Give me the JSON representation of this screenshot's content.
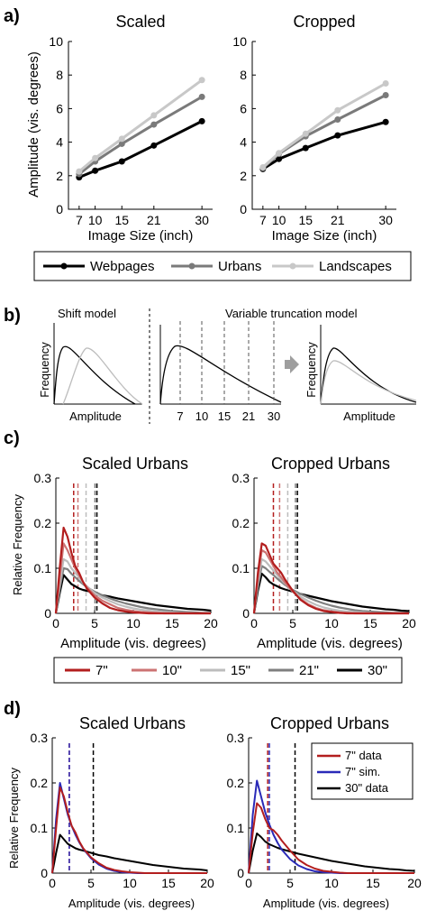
{
  "colors": {
    "webpages": "#000000",
    "urbans": "#7a7a7a",
    "landscapes": "#c8c8c8",
    "in7": "#b31e1e",
    "in10": "#cc7373",
    "in15": "#bdbdbd",
    "in21": "#7f7f7f",
    "in30": "#000000",
    "sim7": "#2a2ab8"
  },
  "panel_a": {
    "label": "a)",
    "ylabel": "Amplitude (vis. degrees)",
    "xlabel": "Image Size (inch)",
    "legend": [
      "Webpages",
      "Urbans",
      "Landscapes"
    ],
    "left_title": "Scaled",
    "right_title": "Cropped"
  },
  "panel_b": {
    "label": "b)",
    "shift_title": "Shift model",
    "trunc_title": "Variable truncation model",
    "ylabel": "Frequency",
    "xlabel": "Amplitude",
    "ticks": [
      "7",
      "10",
      "15",
      "21",
      "30"
    ]
  },
  "panel_c": {
    "label": "c)",
    "ylabel": "Relative Frequency",
    "xlabel": "Amplitude (vis. degrees)",
    "left_title": "Scaled Urbans",
    "right_title": "Cropped Urbans",
    "legend": [
      "7\"",
      "10\"",
      "15\"",
      "21\"",
      "30\""
    ]
  },
  "panel_d": {
    "label": "d)",
    "ylabel": "Relative Frequency",
    "xlabel": "Amplitude (vis. degrees)",
    "left_title": "Scaled Urbans",
    "right_title": "Cropped Urbans",
    "legend": [
      "7\" data",
      "7\" sim.",
      "30\" data"
    ]
  },
  "chart_data": [
    {
      "type": "line",
      "title": "Scaled",
      "xlabel": "Image Size (inch)",
      "ylabel": "Amplitude (vis. degrees)",
      "x": [
        7,
        10,
        15,
        21,
        30
      ],
      "xlim": [
        5,
        32
      ],
      "ylim": [
        0,
        10
      ],
      "yticks": [
        0,
        2,
        4,
        6,
        8,
        10
      ],
      "series": [
        {
          "name": "Webpages",
          "values": [
            1.9,
            2.3,
            2.85,
            3.8,
            5.25
          ]
        },
        {
          "name": "Urbans",
          "values": [
            2.1,
            2.85,
            3.9,
            5.05,
            6.7
          ]
        },
        {
          "name": "Landscapes",
          "values": [
            2.25,
            3.05,
            4.2,
            5.6,
            7.7
          ]
        }
      ]
    },
    {
      "type": "line",
      "title": "Cropped",
      "xlabel": "Image Size (inch)",
      "ylabel": "Amplitude (vis. degrees)",
      "x": [
        7,
        10,
        15,
        21,
        30
      ],
      "xlim": [
        5,
        32
      ],
      "ylim": [
        0,
        10
      ],
      "yticks": [
        0,
        2,
        4,
        6,
        8,
        10
      ],
      "series": [
        {
          "name": "Webpages",
          "values": [
            2.4,
            3.0,
            3.65,
            4.4,
            5.2
          ]
        },
        {
          "name": "Urbans",
          "values": [
            2.45,
            3.3,
            4.35,
            5.35,
            6.8
          ]
        },
        {
          "name": "Landscapes",
          "values": [
            2.5,
            3.35,
            4.5,
            5.9,
            7.5
          ]
        }
      ]
    },
    {
      "type": "line",
      "title": "Scaled Urbans",
      "xlabel": "Amplitude (vis. degrees)",
      "ylabel": "Relative Frequency",
      "xlim": [
        0,
        20
      ],
      "ylim": [
        0,
        0.3
      ],
      "xticks": [
        0,
        5,
        10,
        15,
        20
      ],
      "yticks": [
        0,
        0.1,
        0.2,
        0.3
      ],
      "x": [
        0,
        0.5,
        1,
        1.5,
        2,
        2.5,
        3,
        3.5,
        4,
        5,
        6,
        7,
        8,
        9,
        10,
        11,
        12,
        13,
        14,
        15,
        16,
        17,
        18,
        19,
        20
      ],
      "series": [
        {
          "name": "7\"",
          "values": [
            0,
            0.1,
            0.19,
            0.17,
            0.135,
            0.105,
            0.09,
            0.07,
            0.055,
            0.035,
            0.022,
            0.012,
            0.007,
            0.004,
            0.002,
            0.001,
            0,
            0,
            0,
            0,
            0,
            0,
            0,
            0,
            0
          ],
          "vline": 2.3
        },
        {
          "name": "10\"",
          "values": [
            0,
            0.08,
            0.155,
            0.14,
            0.12,
            0.1,
            0.085,
            0.07,
            0.058,
            0.04,
            0.028,
            0.02,
            0.012,
            0.008,
            0.005,
            0.003,
            0.002,
            0.001,
            0,
            0,
            0,
            0,
            0,
            0,
            0
          ],
          "vline": 2.85
        },
        {
          "name": "15\"",
          "values": [
            0,
            0.065,
            0.12,
            0.115,
            0.1,
            0.09,
            0.08,
            0.068,
            0.06,
            0.045,
            0.035,
            0.027,
            0.02,
            0.015,
            0.011,
            0.008,
            0.006,
            0.004,
            0.003,
            0.002,
            0.001,
            0.001,
            0,
            0,
            0
          ],
          "vline": 3.9
        },
        {
          "name": "21\"",
          "values": [
            0,
            0.055,
            0.1,
            0.098,
            0.088,
            0.08,
            0.072,
            0.065,
            0.058,
            0.048,
            0.04,
            0.033,
            0.027,
            0.022,
            0.018,
            0.014,
            0.011,
            0.009,
            0.007,
            0.005,
            0.004,
            0.003,
            0.002,
            0.001,
            0.001
          ],
          "vline": 5.05
        },
        {
          "name": "30\"",
          "values": [
            0,
            0.045,
            0.085,
            0.075,
            0.065,
            0.06,
            0.055,
            0.052,
            0.05,
            0.045,
            0.04,
            0.037,
            0.033,
            0.03,
            0.027,
            0.024,
            0.021,
            0.018,
            0.016,
            0.014,
            0.012,
            0.01,
            0.009,
            0.008,
            0.006
          ],
          "vline": 5.3
        }
      ]
    },
    {
      "type": "line",
      "title": "Cropped Urbans",
      "xlabel": "Amplitude (vis. degrees)",
      "ylabel": "Relative Frequency",
      "xlim": [
        0,
        20
      ],
      "ylim": [
        0,
        0.3
      ],
      "xticks": [
        0,
        5,
        10,
        15,
        20
      ],
      "yticks": [
        0,
        0.1,
        0.2,
        0.3
      ],
      "x": [
        0,
        0.5,
        1,
        1.5,
        2,
        2.5,
        3,
        3.5,
        4,
        5,
        6,
        7,
        8,
        9,
        10,
        11,
        12,
        13,
        14,
        15,
        16,
        17,
        18,
        19,
        20
      ],
      "series": [
        {
          "name": "7\"",
          "values": [
            0,
            0.09,
            0.155,
            0.15,
            0.13,
            0.11,
            0.1,
            0.09,
            0.075,
            0.05,
            0.03,
            0.018,
            0.01,
            0.005,
            0.003,
            0.001,
            0,
            0,
            0,
            0,
            0,
            0,
            0,
            0,
            0
          ],
          "vline": 2.5
        },
        {
          "name": "10\"",
          "values": [
            0,
            0.08,
            0.14,
            0.135,
            0.12,
            0.105,
            0.09,
            0.08,
            0.068,
            0.048,
            0.032,
            0.02,
            0.012,
            0.007,
            0.004,
            0.002,
            0.001,
            0,
            0,
            0,
            0,
            0,
            0,
            0,
            0
          ],
          "vline": 3.3
        },
        {
          "name": "15\"",
          "values": [
            0,
            0.07,
            0.12,
            0.115,
            0.105,
            0.095,
            0.085,
            0.075,
            0.066,
            0.05,
            0.037,
            0.027,
            0.019,
            0.013,
            0.009,
            0.006,
            0.004,
            0.003,
            0.002,
            0.001,
            0,
            0,
            0,
            0,
            0
          ],
          "vline": 4.35
        },
        {
          "name": "21\"",
          "values": [
            0,
            0.06,
            0.105,
            0.1,
            0.092,
            0.085,
            0.077,
            0.07,
            0.063,
            0.052,
            0.043,
            0.035,
            0.028,
            0.022,
            0.017,
            0.013,
            0.01,
            0.007,
            0.005,
            0.004,
            0.003,
            0.002,
            0.001,
            0.001,
            0
          ],
          "vline": 5.35
        },
        {
          "name": "30\"",
          "values": [
            0,
            0.05,
            0.088,
            0.08,
            0.07,
            0.064,
            0.06,
            0.056,
            0.053,
            0.048,
            0.043,
            0.039,
            0.035,
            0.031,
            0.027,
            0.024,
            0.021,
            0.018,
            0.015,
            0.013,
            0.011,
            0.009,
            0.008,
            0.006,
            0.005
          ],
          "vline": 5.6
        }
      ]
    },
    {
      "type": "line",
      "title": "Scaled Urbans",
      "xlabel": "Amplitude (vis. degrees)",
      "ylabel": "Relative Frequency",
      "xlim": [
        0,
        20
      ],
      "ylim": [
        0,
        0.3
      ],
      "xticks": [
        0,
        5,
        10,
        15,
        20
      ],
      "yticks": [
        0,
        0.1,
        0.2,
        0.3
      ],
      "x": [
        0,
        0.5,
        1,
        1.5,
        2,
        2.5,
        3,
        3.5,
        4,
        5,
        6,
        7,
        8,
        9,
        10,
        11,
        12,
        13,
        14,
        15,
        16,
        17,
        18,
        19,
        20
      ],
      "series": [
        {
          "name": "7\" data",
          "values": [
            0,
            0.1,
            0.19,
            0.17,
            0.135,
            0.105,
            0.09,
            0.07,
            0.055,
            0.035,
            0.022,
            0.012,
            0.007,
            0.004,
            0.002,
            0.001,
            0,
            0,
            0,
            0,
            0,
            0,
            0,
            0,
            0
          ],
          "vline": 2.2
        },
        {
          "name": "7\" sim.",
          "values": [
            0,
            0.12,
            0.2,
            0.165,
            0.13,
            0.105,
            0.085,
            0.068,
            0.054,
            0.033,
            0.019,
            0.01,
            0.005,
            0.002,
            0.001,
            0,
            0,
            0,
            0,
            0,
            0,
            0,
            0,
            0,
            0
          ],
          "vline": 2.2
        },
        {
          "name": "30\" data",
          "values": [
            0,
            0.045,
            0.085,
            0.075,
            0.065,
            0.06,
            0.055,
            0.052,
            0.05,
            0.045,
            0.04,
            0.037,
            0.033,
            0.03,
            0.027,
            0.024,
            0.021,
            0.018,
            0.016,
            0.014,
            0.012,
            0.01,
            0.009,
            0.008,
            0.006
          ],
          "vline": 5.3
        }
      ]
    },
    {
      "type": "line",
      "title": "Cropped Urbans",
      "xlabel": "Amplitude (vis. degrees)",
      "ylabel": "Relative Frequency",
      "xlim": [
        0,
        20
      ],
      "ylim": [
        0,
        0.3
      ],
      "xticks": [
        0,
        5,
        10,
        15,
        20
      ],
      "yticks": [
        0,
        0.1,
        0.2,
        0.3
      ],
      "x": [
        0,
        0.5,
        1,
        1.5,
        2,
        2.5,
        3,
        3.5,
        4,
        5,
        6,
        7,
        8,
        9,
        10,
        11,
        12,
        13,
        14,
        15,
        16,
        17,
        18,
        19,
        20
      ],
      "series": [
        {
          "name": "7\" data",
          "values": [
            0,
            0.09,
            0.155,
            0.145,
            0.12,
            0.1,
            0.095,
            0.085,
            0.072,
            0.05,
            0.03,
            0.018,
            0.01,
            0.005,
            0.003,
            0.001,
            0,
            0,
            0,
            0,
            0,
            0,
            0,
            0,
            0
          ],
          "vline": 2.3
        },
        {
          "name": "7\" sim.",
          "values": [
            0,
            0.13,
            0.205,
            0.17,
            0.135,
            0.108,
            0.085,
            0.067,
            0.052,
            0.031,
            0.017,
            0.009,
            0.004,
            0.002,
            0.001,
            0,
            0,
            0,
            0,
            0,
            0,
            0,
            0,
            0,
            0
          ],
          "vline": 2.5
        },
        {
          "name": "30\" data",
          "values": [
            0,
            0.05,
            0.088,
            0.08,
            0.07,
            0.064,
            0.06,
            0.056,
            0.053,
            0.048,
            0.043,
            0.039,
            0.035,
            0.031,
            0.027,
            0.024,
            0.021,
            0.018,
            0.015,
            0.013,
            0.011,
            0.009,
            0.008,
            0.006,
            0.005
          ],
          "vline": 5.6
        }
      ]
    }
  ]
}
